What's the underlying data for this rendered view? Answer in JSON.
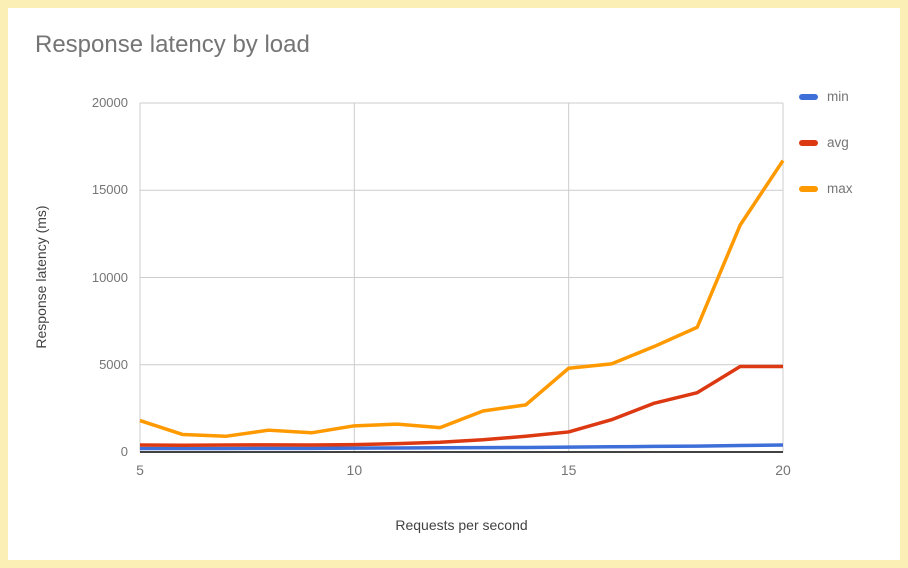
{
  "page": {
    "frame_color": "#FBEFB5",
    "background_color": "#FFFFFF"
  },
  "chart": {
    "title": "Response latency by load",
    "title_color": "#757575",
    "xlabel": "Requests per second",
    "ylabel": "Response latency (ms)"
  },
  "chart_data": {
    "type": "line",
    "title": "Response latency by load",
    "xlabel": "Requests per second",
    "ylabel": "Response latency (ms)",
    "x": [
      5,
      6,
      7,
      8,
      9,
      10,
      11,
      12,
      13,
      14,
      15,
      16,
      17,
      18,
      19,
      20
    ],
    "series": [
      {
        "name": "min",
        "color": "#3E6FD8",
        "values": [
          200,
          200,
          200,
          210,
          210,
          220,
          230,
          240,
          250,
          260,
          280,
          300,
          320,
          340,
          370,
          400
        ]
      },
      {
        "name": "avg",
        "color": "#DC3912",
        "values": [
          400,
          390,
          400,
          410,
          400,
          420,
          480,
          560,
          700,
          900,
          1150,
          1850,
          2800,
          3400,
          4900,
          4900
        ]
      },
      {
        "name": "max",
        "color": "#FF9900",
        "values": [
          1800,
          1000,
          900,
          1250,
          1100,
          1500,
          1600,
          1400,
          2350,
          2700,
          4800,
          5050,
          6050,
          7150,
          13000,
          16700
        ]
      }
    ],
    "xlim": [
      5,
      20
    ],
    "ylim": [
      0,
      20000
    ],
    "x_ticks": [
      5,
      10,
      15,
      20
    ],
    "y_ticks": [
      0,
      5000,
      10000,
      15000,
      20000
    ],
    "grid": true,
    "legend_position": "right",
    "gridline_color": "#CCCCCC",
    "baseline_color": "#424242",
    "tick_label_color": "#757575",
    "axis_title_color": "#424242",
    "line_width": 3.5
  }
}
